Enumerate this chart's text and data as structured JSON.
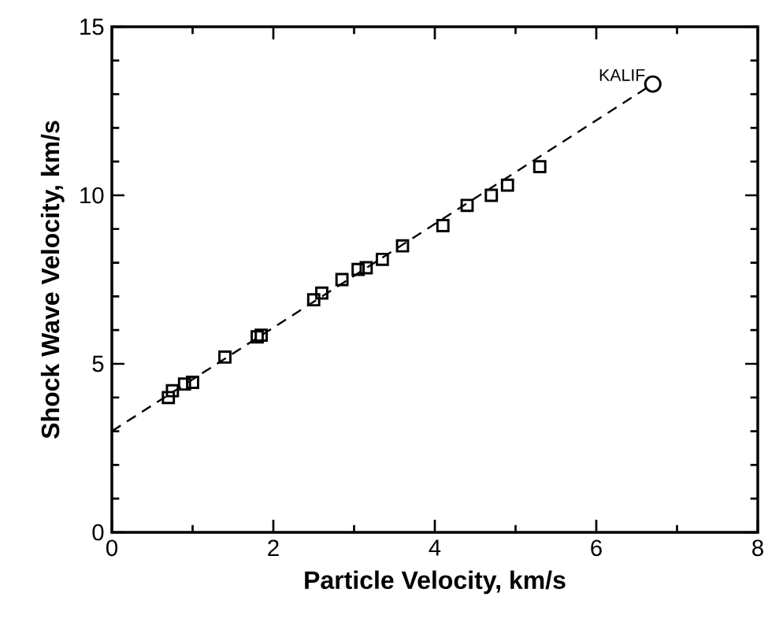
{
  "chart_data": {
    "type": "scatter",
    "xlabel": "Particle Velocity, km/s",
    "ylabel": "Shock Wave Velocity, km/s",
    "xlim": [
      0,
      8
    ],
    "ylim": [
      0,
      15
    ],
    "xticks": [
      0,
      2,
      4,
      6,
      8
    ],
    "yticks": [
      0,
      5,
      10,
      15
    ],
    "grid": false,
    "series": [
      {
        "marker": "square",
        "color": "#000000",
        "x": [
          0.7,
          0.75,
          0.9,
          1.0,
          1.4,
          1.8,
          1.85,
          2.5,
          2.6,
          2.85,
          3.05,
          3.15,
          3.35,
          3.6,
          4.1,
          4.4,
          4.7,
          4.9,
          5.3
        ],
        "values": [
          4.0,
          4.2,
          4.4,
          4.45,
          5.2,
          5.8,
          5.85,
          6.9,
          7.1,
          7.5,
          7.8,
          7.85,
          8.1,
          8.5,
          9.1,
          9.7,
          10.0,
          10.3,
          10.85
        ]
      },
      {
        "marker": "circle",
        "color": "#000000",
        "x": [
          6.7
        ],
        "values": [
          13.3
        ]
      },
      {
        "type": "line",
        "marker": "none",
        "line_style": "dashed",
        "color": "#000000",
        "x": [
          0,
          6.7
        ],
        "values": [
          3.0,
          13.3
        ]
      }
    ],
    "annotations": [
      {
        "text": "KALIF",
        "x": 6.7,
        "y": 13.3
      }
    ]
  }
}
